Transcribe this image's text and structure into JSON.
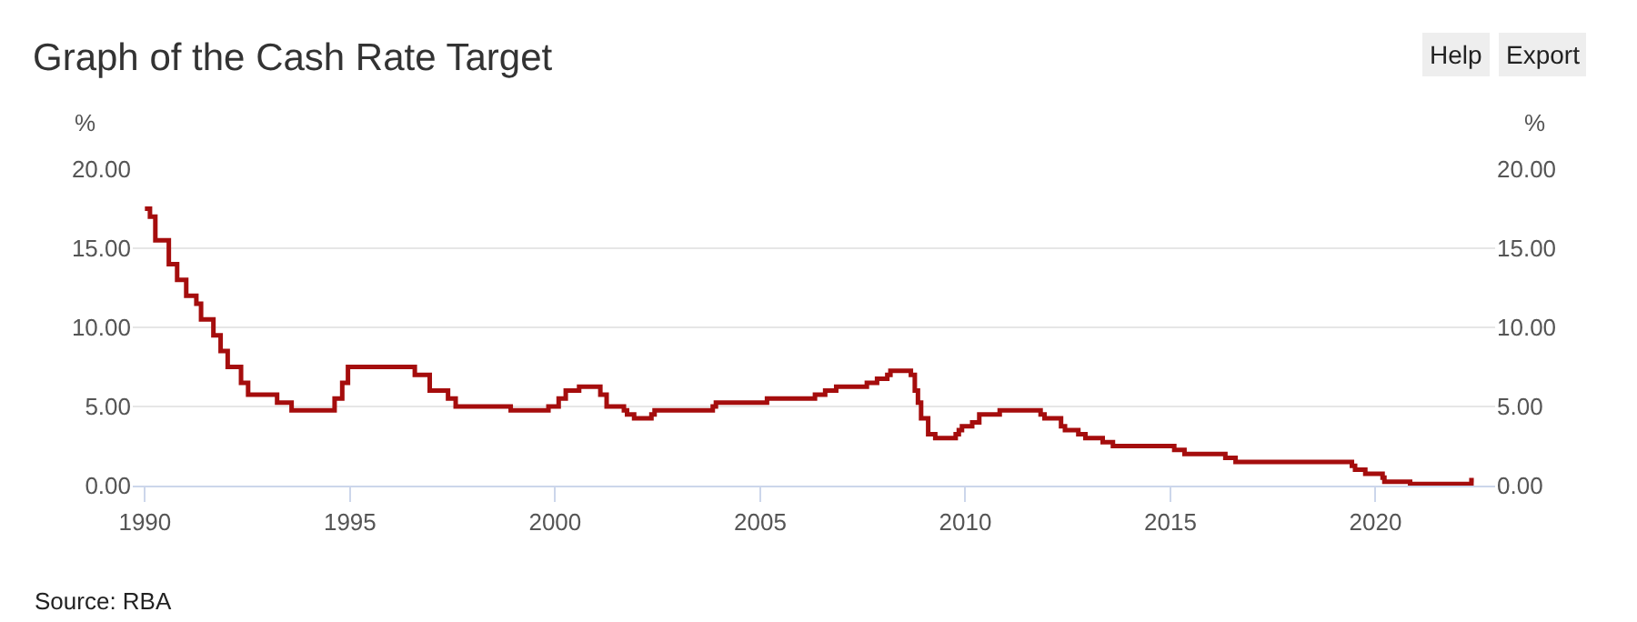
{
  "chart_data": {
    "type": "step",
    "title": "Graph of the Cash Rate Target",
    "ylabel": "%",
    "y2label": "%",
    "annotations": [
      "Source: RBA",
      "Help",
      "Export"
    ],
    "x": [
      "1990-01-01",
      "1990-02-15",
      "1990-04-04",
      "1990-08-02",
      "1990-10-15",
      "1991-01-04",
      "1991-04-04",
      "1991-05-16",
      "1991-09-03",
      "1991-11-06",
      "1992-01-08",
      "1992-05-06",
      "1992-07-08",
      "1993-03-23",
      "1993-07-30",
      "1994-08-17",
      "1994-10-24",
      "1994-12-14",
      "1996-07-31",
      "1996-12-11",
      "1997-05-23",
      "1997-07-30",
      "1998-12-02",
      "1999-11-03",
      "2000-02-02",
      "2000-04-05",
      "2000-08-02",
      "2001-02-07",
      "2001-04-04",
      "2001-09-05",
      "2001-10-03",
      "2001-12-05",
      "2002-05-08",
      "2002-06-05",
      "2003-11-05",
      "2003-12-03",
      "2005-03-02",
      "2006-05-03",
      "2006-08-02",
      "2006-11-08",
      "2007-08-08",
      "2007-11-07",
      "2008-02-06",
      "2008-03-05",
      "2008-09-03",
      "2008-10-08",
      "2008-11-05",
      "2008-12-03",
      "2009-02-04",
      "2009-04-08",
      "2009-10-07",
      "2009-11-04",
      "2009-12-02",
      "2010-03-03",
      "2010-05-05",
      "2010-11-03",
      "2011-11-02",
      "2011-12-07",
      "2012-05-02",
      "2012-06-06",
      "2012-10-03",
      "2012-12-05",
      "2013-05-08",
      "2013-08-07",
      "2015-02-04",
      "2015-05-06",
      "2016-05-04",
      "2016-08-03",
      "2019-06-05",
      "2019-07-03",
      "2019-10-02",
      "2020-03-04",
      "2020-03-20",
      "2020-11-04",
      "2022-05-04",
      "2022-05-25"
    ],
    "series": [
      {
        "color": "#a50d0d",
        "values": [
          17.5,
          17.0,
          15.5,
          14.0,
          13.0,
          12.0,
          11.5,
          10.5,
          9.5,
          8.5,
          7.5,
          6.5,
          5.75,
          5.25,
          4.75,
          5.5,
          6.5,
          7.5,
          7.0,
          6.0,
          5.5,
          5.0,
          4.75,
          5.0,
          5.5,
          6.0,
          6.25,
          5.75,
          5.0,
          4.75,
          4.5,
          4.25,
          4.5,
          4.75,
          5.0,
          5.25,
          5.5,
          5.75,
          6.0,
          6.25,
          6.5,
          6.75,
          7.0,
          7.25,
          7.0,
          6.0,
          5.25,
          4.25,
          3.25,
          3.0,
          3.25,
          3.5,
          3.75,
          4.0,
          4.5,
          4.75,
          4.5,
          4.25,
          3.75,
          3.5,
          3.25,
          3.0,
          2.75,
          2.5,
          2.25,
          2.0,
          1.75,
          1.5,
          1.25,
          1.0,
          0.75,
          0.5,
          0.25,
          0.1,
          0.35,
          0.35
        ]
      }
    ],
    "xlim": [
      "1989-09-15",
      "2022-12-01"
    ],
    "xticks": [
      "1990",
      "1995",
      "2000",
      "2005",
      "2010",
      "2015",
      "2020"
    ],
    "ylim": [
      0,
      20
    ],
    "yticks": [
      {
        "value": 0,
        "label": "0.00"
      },
      {
        "value": 5,
        "label": "5.00"
      },
      {
        "value": 10,
        "label": "10.00"
      },
      {
        "value": 15,
        "label": "15.00"
      },
      {
        "value": 20,
        "label": "20.00"
      }
    ],
    "y2lim": [
      0,
      20
    ],
    "y2ticks": [
      {
        "value": 0,
        "label": "0.00"
      },
      {
        "value": 5,
        "label": "5.00"
      },
      {
        "value": 10,
        "label": "10.00"
      },
      {
        "value": 15,
        "label": "15.00"
      },
      {
        "value": 20,
        "label": "20.00"
      }
    ],
    "grid": "y",
    "marker": "none",
    "line_style": "solid"
  }
}
